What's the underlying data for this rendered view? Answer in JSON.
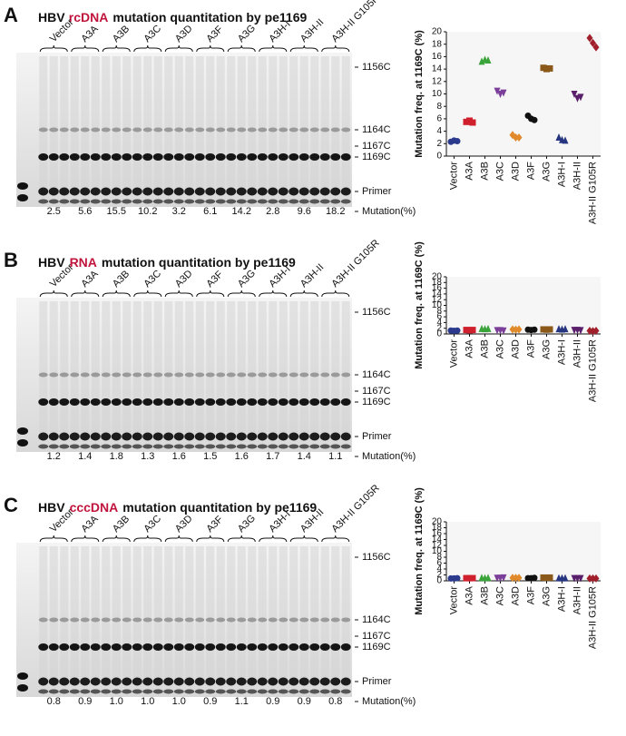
{
  "panels": [
    {
      "letter": "A",
      "title": [
        "HBV",
        "rcDNA",
        "mutation quantitation by pe1169"
      ],
      "highlight_color": "#c0143c",
      "lanes": [
        "Vector",
        "A3A",
        "A3B",
        "A3C",
        "A3D",
        "A3F",
        "A3G",
        "A3H-I",
        "A3H-II",
        "A3H-II G105R"
      ],
      "lane_colors": [
        "#111111",
        "#111111",
        "#2e9a3a",
        "#2e9a3a",
        "#111111",
        "#111111",
        "#2e9a3a",
        "#111111",
        "#2e9a3a",
        "#2e9a3a"
      ],
      "band_labels": [
        "1156C",
        "1164C",
        "1167C",
        "1169C",
        "Primer"
      ],
      "mutation": [
        "2.5",
        "5.6",
        "15.5",
        "10.2",
        "3.2",
        "6.1",
        "14.2",
        "2.8",
        "9.6",
        "18.2"
      ],
      "mutation_label": "Mutation(%)"
    },
    {
      "letter": "B",
      "title": [
        "HBV",
        "RNA",
        "mutation quantitation by pe1169"
      ],
      "highlight_color": "#c0143c",
      "lanes": [
        "Vector",
        "A3A",
        "A3B",
        "A3C",
        "A3D",
        "A3F",
        "A3G",
        "A3H-I",
        "A3H-II",
        "A3H-II G105R"
      ],
      "lane_colors": [
        "#111111",
        "#111111",
        "#2e9a3a",
        "#2e9a3a",
        "#111111",
        "#111111",
        "#2e9a3a",
        "#111111",
        "#2e9a3a",
        "#2e9a3a"
      ],
      "band_labels": [
        "1156C",
        "1164C",
        "1167C",
        "1169C",
        "Primer"
      ],
      "mutation": [
        "1.2",
        "1.4",
        "1.8",
        "1.3",
        "1.6",
        "1.5",
        "1.6",
        "1.7",
        "1.4",
        "1.1"
      ],
      "mutation_label": "Mutation(%)"
    },
    {
      "letter": "C",
      "title": [
        "HBV",
        "cccDNA",
        "mutation quantitation by pe1169"
      ],
      "highlight_color": "#c0143c",
      "lanes": [
        "Vector",
        "A3A",
        "A3B",
        "A3C",
        "A3D",
        "A3F",
        "A3G",
        "A3H-I",
        "A3H-II",
        "A3H-II G105R"
      ],
      "lane_colors": [
        "#111111",
        "#111111",
        "#2e9a3a",
        "#2e9a3a",
        "#111111",
        "#111111",
        "#2e9a3a",
        "#111111",
        "#2e9a3a",
        "#2e9a3a"
      ],
      "band_labels": [
        "1156C",
        "1164C",
        "1167C",
        "1169C",
        "Primer"
      ],
      "mutation": [
        "0.8",
        "0.9",
        "1.0",
        "1.0",
        "1.0",
        "0.9",
        "1.1",
        "0.9",
        "0.9",
        "0.8"
      ],
      "mutation_label": "Mutation(%)"
    }
  ],
  "chart_data": [
    {
      "type": "dot",
      "y_label": "Mutation freq. at 1169C (%)",
      "categories": [
        "Vector",
        "A3A",
        "A3B",
        "A3C",
        "A3D",
        "A3F",
        "A3G",
        "A3H-I",
        "A3H-II",
        "A3H-II G105R"
      ],
      "label_colors": [
        "#111111",
        "#111111",
        "#2e9a3a",
        "#2e9a3a",
        "#111111",
        "#111111",
        "#2e9a3a",
        "#111111",
        "#2e9a3a",
        "#2e9a3a"
      ],
      "colors": [
        "#2b3a8c",
        "#d0202e",
        "#3aa43a",
        "#7b3f99",
        "#e08a2c",
        "#111111",
        "#8b5a1a",
        "#263580",
        "#5a1f6b",
        "#a01f2a"
      ],
      "markers": [
        "circle",
        "square",
        "triangle-up",
        "triangle-down",
        "diamond",
        "circle",
        "square",
        "triangle-up",
        "triangle-down",
        "diamond"
      ],
      "values": [
        [
          2.3,
          2.5,
          2.4
        ],
        [
          5.5,
          5.7,
          5.4
        ],
        [
          15.2,
          15.5,
          15.4
        ],
        [
          10.5,
          10.0,
          10.2
        ],
        [
          3.4,
          3.0,
          3.0
        ],
        [
          6.5,
          6.0,
          5.8
        ],
        [
          14.2,
          14.0,
          14.1
        ],
        [
          3.0,
          2.6,
          2.5
        ],
        [
          10.0,
          9.3,
          9.5
        ],
        [
          19.0,
          18.2,
          17.5
        ]
      ],
      "ylim": [
        0,
        20
      ],
      "yticks": [
        0,
        2,
        4,
        6,
        8,
        10,
        12,
        14,
        16,
        18,
        20
      ]
    },
    {
      "type": "dot",
      "y_label": "Mutation freq. at 1169C (%)",
      "categories": [
        "Vector",
        "A3A",
        "A3B",
        "A3C",
        "A3D",
        "A3F",
        "A3G",
        "A3H-I",
        "A3H-II",
        "A3H-II G105R"
      ],
      "label_colors": [
        "#111111",
        "#111111",
        "#2e9a3a",
        "#2e9a3a",
        "#111111",
        "#111111",
        "#2e9a3a",
        "#111111",
        "#2e9a3a",
        "#2e9a3a"
      ],
      "colors": [
        "#2b3a8c",
        "#d0202e",
        "#3aa43a",
        "#7b3f99",
        "#e08a2c",
        "#111111",
        "#8b5a1a",
        "#263580",
        "#5a1f6b",
        "#a01f2a"
      ],
      "markers": [
        "circle",
        "square",
        "triangle-up",
        "triangle-down",
        "diamond",
        "circle",
        "square",
        "triangle-up",
        "triangle-down",
        "diamond"
      ],
      "values": [
        [
          1.2,
          1.1,
          1.2
        ],
        [
          1.4,
          1.3,
          1.4
        ],
        [
          1.8,
          1.7,
          1.8
        ],
        [
          1.3,
          1.3,
          1.2
        ],
        [
          1.6,
          1.5,
          1.6
        ],
        [
          1.5,
          1.4,
          1.5
        ],
        [
          1.6,
          1.5,
          1.6
        ],
        [
          1.7,
          1.6,
          1.7
        ],
        [
          1.4,
          1.4,
          1.3
        ],
        [
          1.1,
          1.0,
          1.1
        ]
      ],
      "ylim": [
        0,
        20
      ],
      "yticks": [
        0,
        2,
        4,
        6,
        8,
        10,
        12,
        14,
        16,
        18,
        20
      ]
    },
    {
      "type": "dot",
      "y_label": "Mutation freq. at 1169C (%)",
      "categories": [
        "Vector",
        "A3A",
        "A3B",
        "A3C",
        "A3D",
        "A3F",
        "A3G",
        "A3H-I",
        "A3H-II",
        "A3H-II G105R"
      ],
      "label_colors": [
        "#111111",
        "#111111",
        "#2e9a3a",
        "#2e9a3a",
        "#111111",
        "#111111",
        "#2e9a3a",
        "#111111",
        "#2e9a3a",
        "#2e9a3a"
      ],
      "colors": [
        "#2b3a8c",
        "#d0202e",
        "#3aa43a",
        "#7b3f99",
        "#e08a2c",
        "#111111",
        "#8b5a1a",
        "#263580",
        "#5a1f6b",
        "#a01f2a"
      ],
      "markers": [
        "circle",
        "square",
        "triangle-up",
        "triangle-down",
        "diamond",
        "circle",
        "square",
        "triangle-up",
        "triangle-down",
        "diamond"
      ],
      "values": [
        [
          0.8,
          0.8,
          0.9
        ],
        [
          0.9,
          0.9,
          0.9
        ],
        [
          1.0,
          0.9,
          1.0
        ],
        [
          1.0,
          1.0,
          1.1
        ],
        [
          1.0,
          1.0,
          1.0
        ],
        [
          0.9,
          0.9,
          1.0
        ],
        [
          1.1,
          1.0,
          1.1
        ],
        [
          0.9,
          0.9,
          0.9
        ],
        [
          0.9,
          0.9,
          0.9
        ],
        [
          0.8,
          0.8,
          0.8
        ]
      ],
      "ylim": [
        0,
        20
      ],
      "yticks": [
        0,
        2,
        4,
        6,
        8,
        10,
        12,
        14,
        16,
        18,
        20
      ]
    }
  ]
}
